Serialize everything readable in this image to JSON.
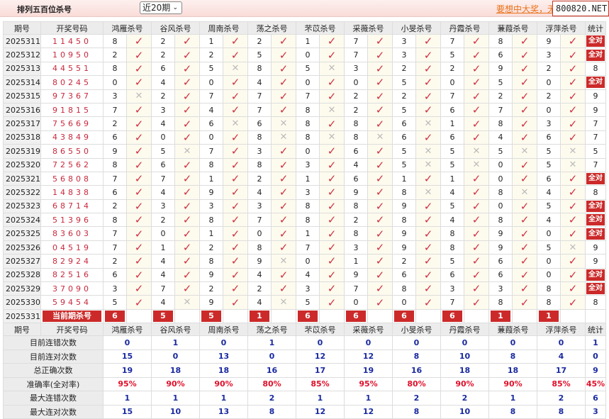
{
  "header": {
    "title": "排列五百位杀号",
    "period_select": "近20期",
    "promo_link": "要想中大奖，无",
    "site_badge": "800820.NET"
  },
  "columns": {
    "issue": "期号",
    "draw": "开奖号码",
    "experts": [
      "鸿雁杀号",
      "谷风杀号",
      "周南杀号",
      "荡之杀号",
      "芣苡杀号",
      "采薇杀号",
      "小旻杀号",
      "丹霞杀号",
      "蒹葭杀号",
      "浮萍杀号"
    ],
    "stat": "统计"
  },
  "rows": [
    {
      "issue": "2025311",
      "draw": "11450",
      "kills": [
        8,
        2,
        1,
        2,
        1,
        7,
        3,
        7,
        8,
        9
      ],
      "marks": "✓✓✓✓✓✓✓✓✓✓",
      "stat": "全对"
    },
    {
      "issue": "2025312",
      "draw": "10950",
      "kills": [
        2,
        2,
        2,
        5,
        0,
        7,
        3,
        5,
        6,
        3
      ],
      "marks": "✓✓✓✓✓✓✓✓✓✓",
      "stat": "全对"
    },
    {
      "issue": "2025313",
      "draw": "44551",
      "kills": [
        8,
        6,
        5,
        8,
        5,
        3,
        2,
        2,
        9,
        2
      ],
      "marks": "✓✓✗✓✗✓✓✓✓✓",
      "stat": "8"
    },
    {
      "issue": "2025314",
      "draw": "80245",
      "kills": [
        0,
        4,
        0,
        4,
        0,
        0,
        5,
        0,
        5,
        0
      ],
      "marks": "✓✓✓✓✓✓✓✓✓✓",
      "stat": "全对"
    },
    {
      "issue": "2025315",
      "draw": "97367",
      "kills": [
        3,
        2,
        7,
        7,
        7,
        2,
        2,
        7,
        2,
        2
      ],
      "marks": "✗✓✓✓✓✓✓✓✓✓",
      "stat": "9"
    },
    {
      "issue": "2025316",
      "draw": "91815",
      "kills": [
        7,
        3,
        4,
        7,
        8,
        2,
        5,
        6,
        7,
        0
      ],
      "marks": "✓✓✓✓✗✓✓✓✓✓",
      "stat": "9"
    },
    {
      "issue": "2025317",
      "draw": "75669",
      "kills": [
        2,
        4,
        6,
        6,
        8,
        8,
        6,
        1,
        8,
        3
      ],
      "marks": "✓✓✗✗✓✓✗✓✓✓",
      "stat": "7"
    },
    {
      "issue": "2025318",
      "draw": "43849",
      "kills": [
        6,
        0,
        0,
        8,
        8,
        8,
        6,
        6,
        4,
        6
      ],
      "marks": "✓✓✓✗✗✗✓✓✓✓",
      "stat": "7"
    },
    {
      "issue": "2025319",
      "draw": "86550",
      "kills": [
        9,
        5,
        7,
        3,
        0,
        6,
        5,
        5,
        5,
        5
      ],
      "marks": "✓✗✓✓✓✓✗✗✗✗",
      "stat": "5"
    },
    {
      "issue": "2025320",
      "draw": "72562",
      "kills": [
        8,
        6,
        8,
        8,
        3,
        4,
        5,
        5,
        0,
        5
      ],
      "marks": "✓✓✓✓✓✓✗✗✓✗",
      "stat": "7"
    },
    {
      "issue": "2025321",
      "draw": "56808",
      "kills": [
        7,
        7,
        1,
        2,
        1,
        6,
        1,
        1,
        0,
        6
      ],
      "marks": "✓✓✓✓✓✓✓✓✓✓",
      "stat": "全对"
    },
    {
      "issue": "2025322",
      "draw": "14838",
      "kills": [
        6,
        4,
        9,
        4,
        3,
        9,
        8,
        4,
        8,
        4
      ],
      "marks": "✓✓✓✓✓✓✗✓✗✓",
      "stat": "8"
    },
    {
      "issue": "2025323",
      "draw": "68714",
      "kills": [
        2,
        3,
        3,
        3,
        8,
        8,
        9,
        5,
        0,
        5
      ],
      "marks": "✓✓✓✓✓✓✓✓✓✓",
      "stat": "全对"
    },
    {
      "issue": "2025324",
      "draw": "51396",
      "kills": [
        8,
        2,
        8,
        7,
        8,
        2,
        8,
        4,
        8,
        4
      ],
      "marks": "✓✓✓✓✓✓✓✓✓✓",
      "stat": "全对"
    },
    {
      "issue": "2025325",
      "draw": "83603",
      "kills": [
        7,
        0,
        1,
        0,
        1,
        8,
        9,
        8,
        9,
        0
      ],
      "marks": "✓✓✓✓✓✓✓✓✓✓",
      "stat": "全对"
    },
    {
      "issue": "2025326",
      "draw": "04519",
      "kills": [
        7,
        1,
        2,
        8,
        7,
        3,
        9,
        8,
        9,
        5
      ],
      "marks": "✓✓✓✓✓✓✓✓✓✗",
      "stat": "9"
    },
    {
      "issue": "2025327",
      "draw": "82924",
      "kills": [
        2,
        4,
        8,
        9,
        0,
        1,
        2,
        5,
        6,
        0
      ],
      "marks": "✓✓✓✗✓✓✓✓✓✓",
      "stat": "9"
    },
    {
      "issue": "2025328",
      "draw": "82516",
      "kills": [
        6,
        4,
        9,
        4,
        4,
        9,
        6,
        6,
        6,
        0
      ],
      "marks": "✓✓✓✓✓✓✓✓✓✓",
      "stat": "全对"
    },
    {
      "issue": "2025329",
      "draw": "37090",
      "kills": [
        3,
        7,
        2,
        2,
        3,
        7,
        8,
        3,
        3,
        8
      ],
      "marks": "✓✓✓✓✓✓✓✓✓✓",
      "stat": "全对"
    },
    {
      "issue": "2025330",
      "draw": "59454",
      "kills": [
        5,
        4,
        9,
        4,
        5,
        0,
        0,
        7,
        8,
        8
      ],
      "marks": "✓✗✓✗✓✓✓✓✓✓",
      "stat": "8"
    }
  ],
  "current": {
    "issue": "2025331",
    "label": "当前期杀号",
    "kills": [
      6,
      5,
      5,
      1,
      6,
      6,
      6,
      6,
      1,
      1
    ]
  },
  "stats": [
    {
      "label": "目前连错次数",
      "values": [
        "0",
        "1",
        "0",
        "1",
        "0",
        "0",
        "0",
        "0",
        "0",
        "0",
        "1"
      ]
    },
    {
      "label": "目前连对次数",
      "values": [
        "15",
        "0",
        "13",
        "0",
        "12",
        "12",
        "8",
        "10",
        "8",
        "4",
        "0"
      ]
    },
    {
      "label": "总正确次数",
      "values": [
        "19",
        "18",
        "18",
        "16",
        "17",
        "19",
        "16",
        "18",
        "18",
        "17",
        "9"
      ]
    },
    {
      "label": "准确率(全对率)",
      "values": [
        "95%",
        "90%",
        "90%",
        "80%",
        "85%",
        "95%",
        "80%",
        "90%",
        "90%",
        "85%",
        "45%"
      ]
    },
    {
      "label": "最大连错次数",
      "values": [
        "1",
        "1",
        "1",
        "2",
        "1",
        "1",
        "2",
        "2",
        "1",
        "2",
        "6"
      ]
    },
    {
      "label": "最大连对次数",
      "values": [
        "15",
        "10",
        "13",
        "8",
        "12",
        "12",
        "8",
        "10",
        "8",
        "8",
        "3"
      ]
    }
  ],
  "colors": {
    "accent": "#cc2a2a",
    "hit": "#d03040",
    "stat_blue": "#1a2aa0"
  }
}
